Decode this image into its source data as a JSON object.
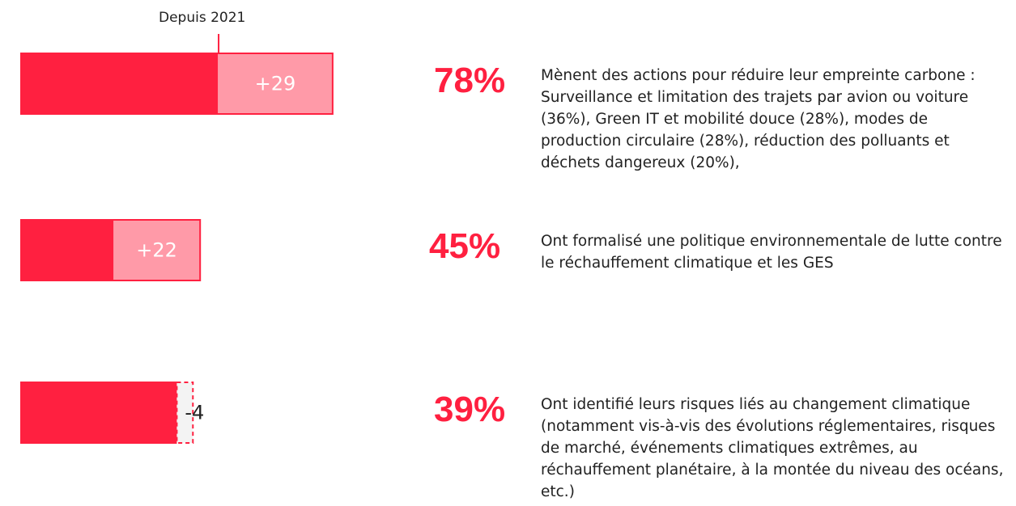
{
  "chart_data": {
    "type": "bar",
    "annotation": "Depuis 2021",
    "values": [
      78,
      45,
      39
    ],
    "value_labels": [
      "78%",
      "45%",
      "39%"
    ],
    "changes": [
      29,
      22,
      -4
    ],
    "change_labels": [
      "+29",
      "+22",
      "-4"
    ],
    "categories": [
      "Mènent des actions pour réduire leur empreinte carbone : Surveillance et limitation des trajets par avion ou voiture (36%), Green IT et mobilité douce (28%), modes de production circulaire (28%), réduction des polluants et déchets dangereux (20%),",
      "Ont formalisé une politique environnementale de lutte contre le réchauffement climatique et les GES",
      "Ont identifié leurs risques liés au changement climatique (notamment vis-à-vis des évolutions réglementaires, risques de marché, événements climatiques extrêmes, au réchauffement planétaire, à la montée du niveau des océans, etc.)"
    ],
    "color": "#ff2040",
    "change_color": "#ff9aa8"
  }
}
